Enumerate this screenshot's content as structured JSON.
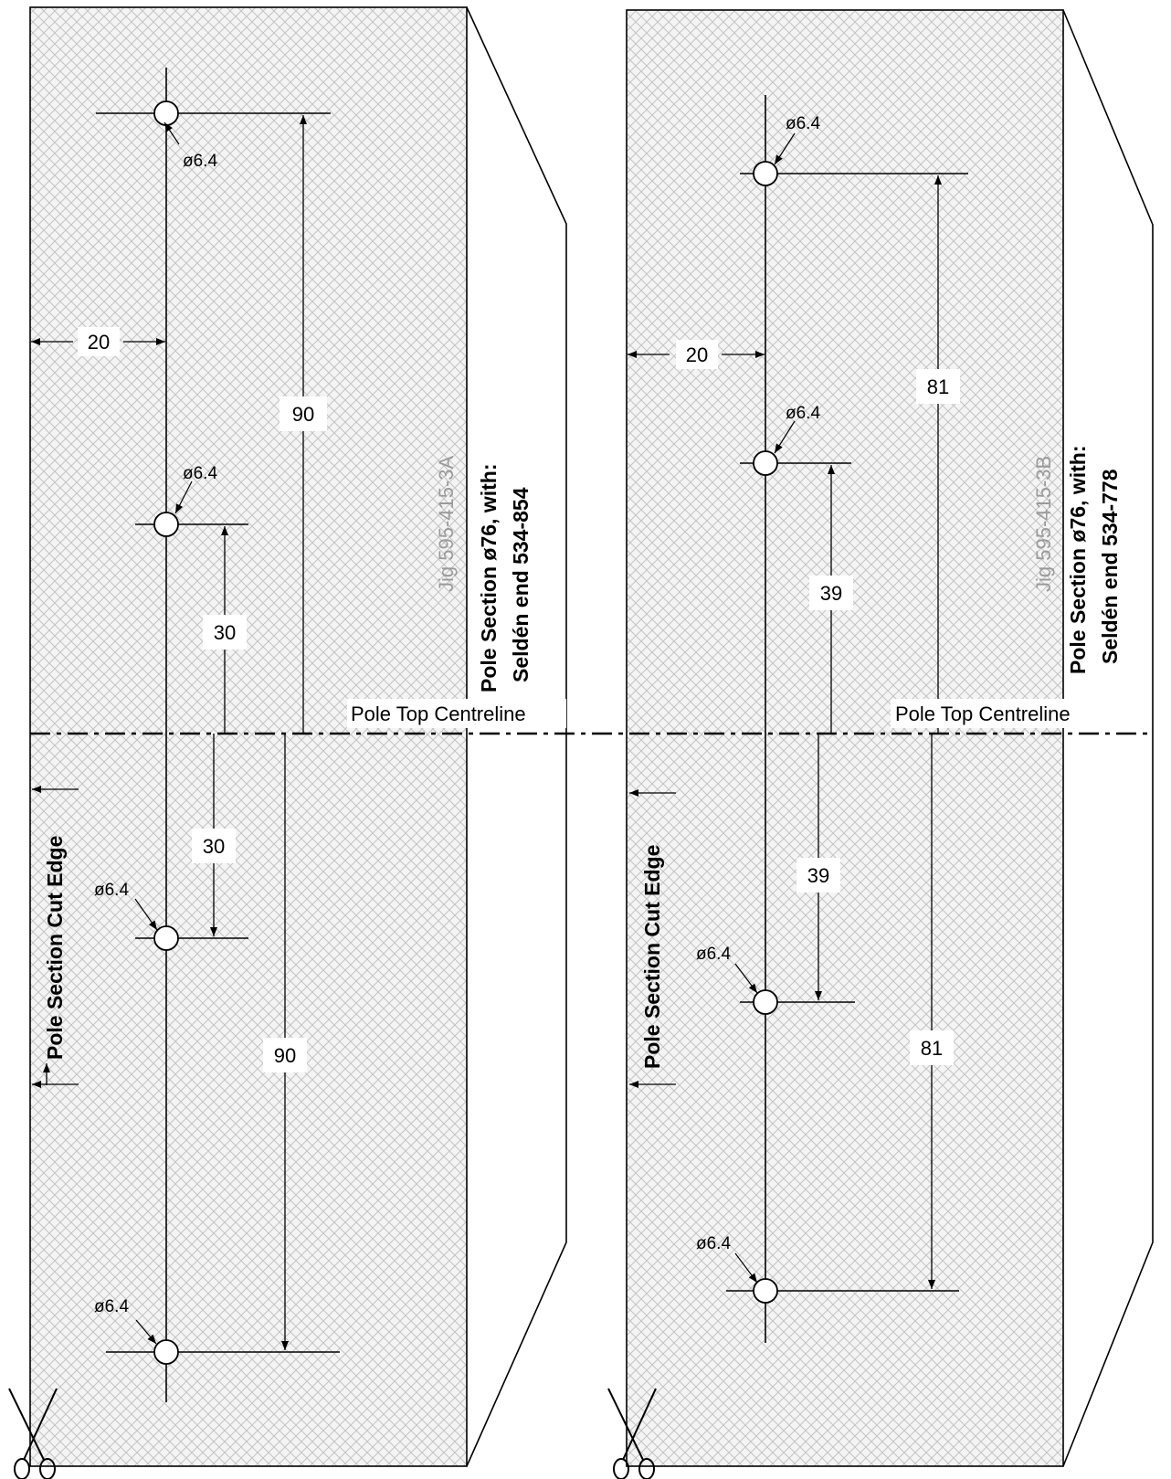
{
  "jig_a": {
    "jig_label": "Jig 595-415-3A",
    "title_line1": "Pole Section ø76, with:",
    "title_line2": "Seldén end 534-854",
    "centreline_label": "Pole Top Centreline",
    "cut_edge_label": "Pole Section Cut Edge",
    "offset_label": "20",
    "dim_outer_top": "90",
    "dim_inner_top": "30",
    "dim_inner_bottom": "30",
    "dim_outer_bottom": "90",
    "hole_label_1": "ø6.4",
    "hole_label_2": "ø6.4",
    "hole_label_3": "ø6.4",
    "hole_label_4": "ø6.4"
  },
  "jig_b": {
    "jig_label": "Jig 595-415-3B",
    "title_line1": "Pole Section ø76, with:",
    "title_line2": "Seldén end 534-778",
    "centreline_label": "Pole Top Centreline",
    "cut_edge_label": "Pole Section Cut Edge",
    "offset_label": "20",
    "dim_outer_top": "81",
    "dim_inner_top": "39",
    "dim_inner_bottom": "39",
    "dim_outer_bottom": "81",
    "hole_label_1": "ø6.4",
    "hole_label_2": "ø6.4",
    "hole_label_3": "ø6.4",
    "hole_label_4": "ø6.4"
  },
  "icons": {
    "cut": "scissors-icon"
  }
}
